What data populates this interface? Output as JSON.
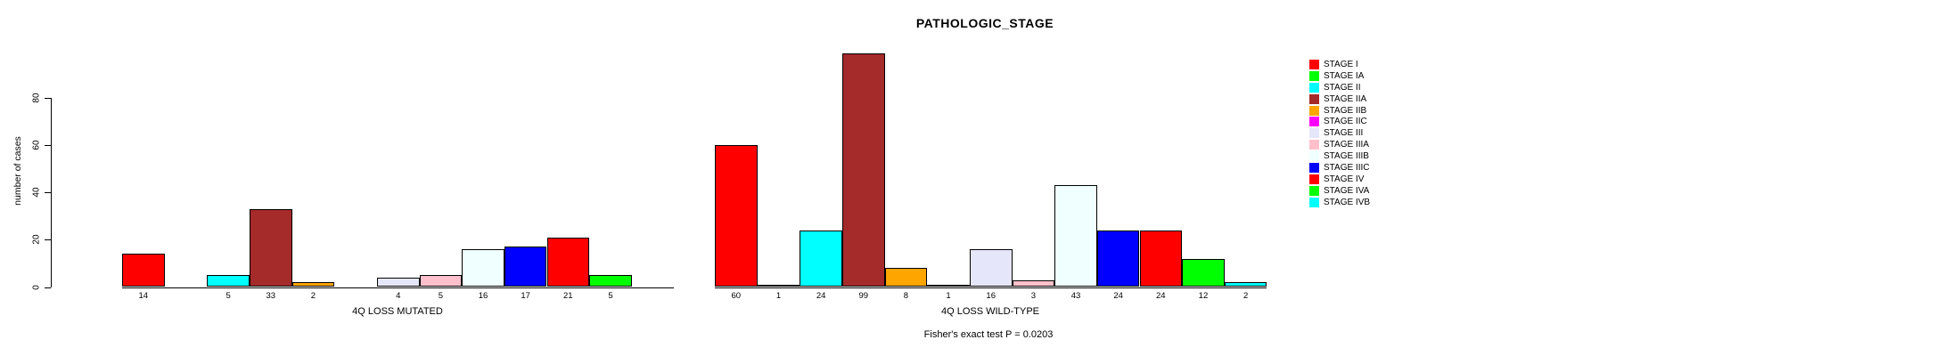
{
  "chart_data": {
    "type": "bar",
    "title": "PATHOLOGIC_STAGE",
    "ylabel": "number of cases",
    "xlabel": "",
    "ylim": [
      0,
      100
    ],
    "yticks": [
      0,
      20,
      40,
      60,
      80
    ],
    "grid": false,
    "legend_position": "right",
    "categories": [
      "STAGE I",
      "STAGE IA",
      "STAGE II",
      "STAGE IIA",
      "STAGE IIB",
      "STAGE IIC",
      "STAGE III",
      "STAGE IIIA",
      "STAGE IIIB",
      "STAGE IIIC",
      "STAGE IV",
      "STAGE IVA",
      "STAGE IVB"
    ],
    "palette": [
      "#FF0000",
      "#00FF00",
      "#00FFFF",
      "#A52A2A",
      "#FFA500",
      "#FF00FF",
      "#E6E6FA",
      "#FFC0CB",
      "#F0FFFF",
      "#0000FF"
    ],
    "groups": [
      {
        "label": "4Q LOSS MUTATED",
        "values": [
          14,
          0,
          5,
          33,
          2,
          0,
          4,
          5,
          16,
          17,
          21,
          5,
          0
        ]
      },
      {
        "label": "4Q LOSS WILD-TYPE",
        "values": [
          60,
          1,
          24,
          99,
          8,
          1,
          16,
          3,
          43,
          24,
          24,
          12,
          2
        ]
      }
    ],
    "annotation": "Fisher's exact test P = 0.0203"
  },
  "legend": {
    "items": [
      {
        "label": "STAGE I",
        "color": "#FF0000"
      },
      {
        "label": "STAGE IA",
        "color": "#00FF00"
      },
      {
        "label": "STAGE II",
        "color": "#00FFFF"
      },
      {
        "label": "STAGE IIA",
        "color": "#A52A2A"
      },
      {
        "label": "STAGE IIB",
        "color": "#FFA500"
      },
      {
        "label": "STAGE IIC",
        "color": "#FF00FF"
      },
      {
        "label": "STAGE III",
        "color": "#E6E6FA"
      },
      {
        "label": "STAGE IIIA",
        "color": "#FFC0CB"
      },
      {
        "label": "STAGE IIIB",
        "color": "#F0FFFF"
      },
      {
        "label": "STAGE IIIC",
        "color": "#0000FF"
      },
      {
        "label": "STAGE IV",
        "color": "#FF0000"
      },
      {
        "label": "STAGE IVA",
        "color": "#00FF00"
      },
      {
        "label": "STAGE IVB",
        "color": "#00FFFF"
      }
    ]
  },
  "colors": {
    "background": "#FFFFFF",
    "axis": "#000000",
    "text": "#000000"
  }
}
